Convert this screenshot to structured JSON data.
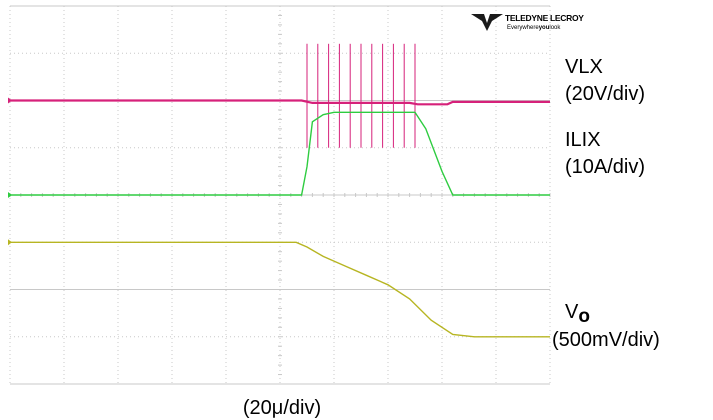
{
  "brand": {
    "name": "TELEDYNE LECROY",
    "tagline_prefix": "Everywhere",
    "tagline_bold": "you",
    "tagline_suffix": "look"
  },
  "colors": {
    "background": "#ffffff",
    "grid": "#c8c8c8",
    "vlx": "#d6217a",
    "ilix": "#2ecc40",
    "vo": "#b7b522"
  },
  "chart_data": {
    "type": "line",
    "xlabel": "(20μ/div)",
    "grid": true,
    "divisions": {
      "x": 10,
      "y": 8
    },
    "x_range_div": [
      0,
      10
    ],
    "channels": [
      {
        "name": "VLX",
        "label_line1": "VLX",
        "label_line2": "(20V/div)",
        "color": "#d6217a",
        "x": [
          0,
          5.4,
          5.6,
          5.8,
          6.0,
          6.2,
          6.4,
          6.6,
          6.8,
          7.0,
          7.2,
          7.4,
          7.55,
          8.1,
          8.2,
          10
        ],
        "y": [
          6.0,
          6.0,
          5.95,
          5.95,
          5.95,
          5.95,
          5.95,
          5.95,
          5.95,
          5.95,
          5.95,
          5.95,
          5.92,
          5.92,
          5.97,
          5.97
        ],
        "spikes_x": [
          5.5,
          5.7,
          5.9,
          6.1,
          6.3,
          6.5,
          6.7,
          6.9,
          7.1,
          7.3,
          7.5
        ],
        "spike_high": 7.2,
        "spike_low": 5.0
      },
      {
        "name": "ILIX",
        "label_line1": "ILIX",
        "label_line2": "(10A/div)",
        "color": "#2ecc40",
        "x": [
          0,
          5.4,
          5.5,
          5.6,
          5.8,
          6.0,
          6.4,
          6.8,
          7.2,
          7.5,
          7.7,
          8.0,
          8.2,
          10
        ],
        "y": [
          4.0,
          4.0,
          4.6,
          5.55,
          5.7,
          5.75,
          5.75,
          5.75,
          5.75,
          5.75,
          5.4,
          4.5,
          4.0,
          4.0
        ]
      },
      {
        "name": "Vo",
        "label_main": "V",
        "label_sub": "o",
        "label_line2": "(500mV/div)",
        "color": "#b7b522",
        "x": [
          0,
          5.3,
          5.5,
          5.8,
          6.2,
          6.6,
          7.0,
          7.4,
          7.8,
          8.2,
          8.6,
          9.0,
          10
        ],
        "y": [
          3.0,
          3.0,
          2.9,
          2.7,
          2.5,
          2.3,
          2.1,
          1.8,
          1.35,
          1.05,
          1.0,
          1.0,
          1.0
        ]
      }
    ]
  }
}
